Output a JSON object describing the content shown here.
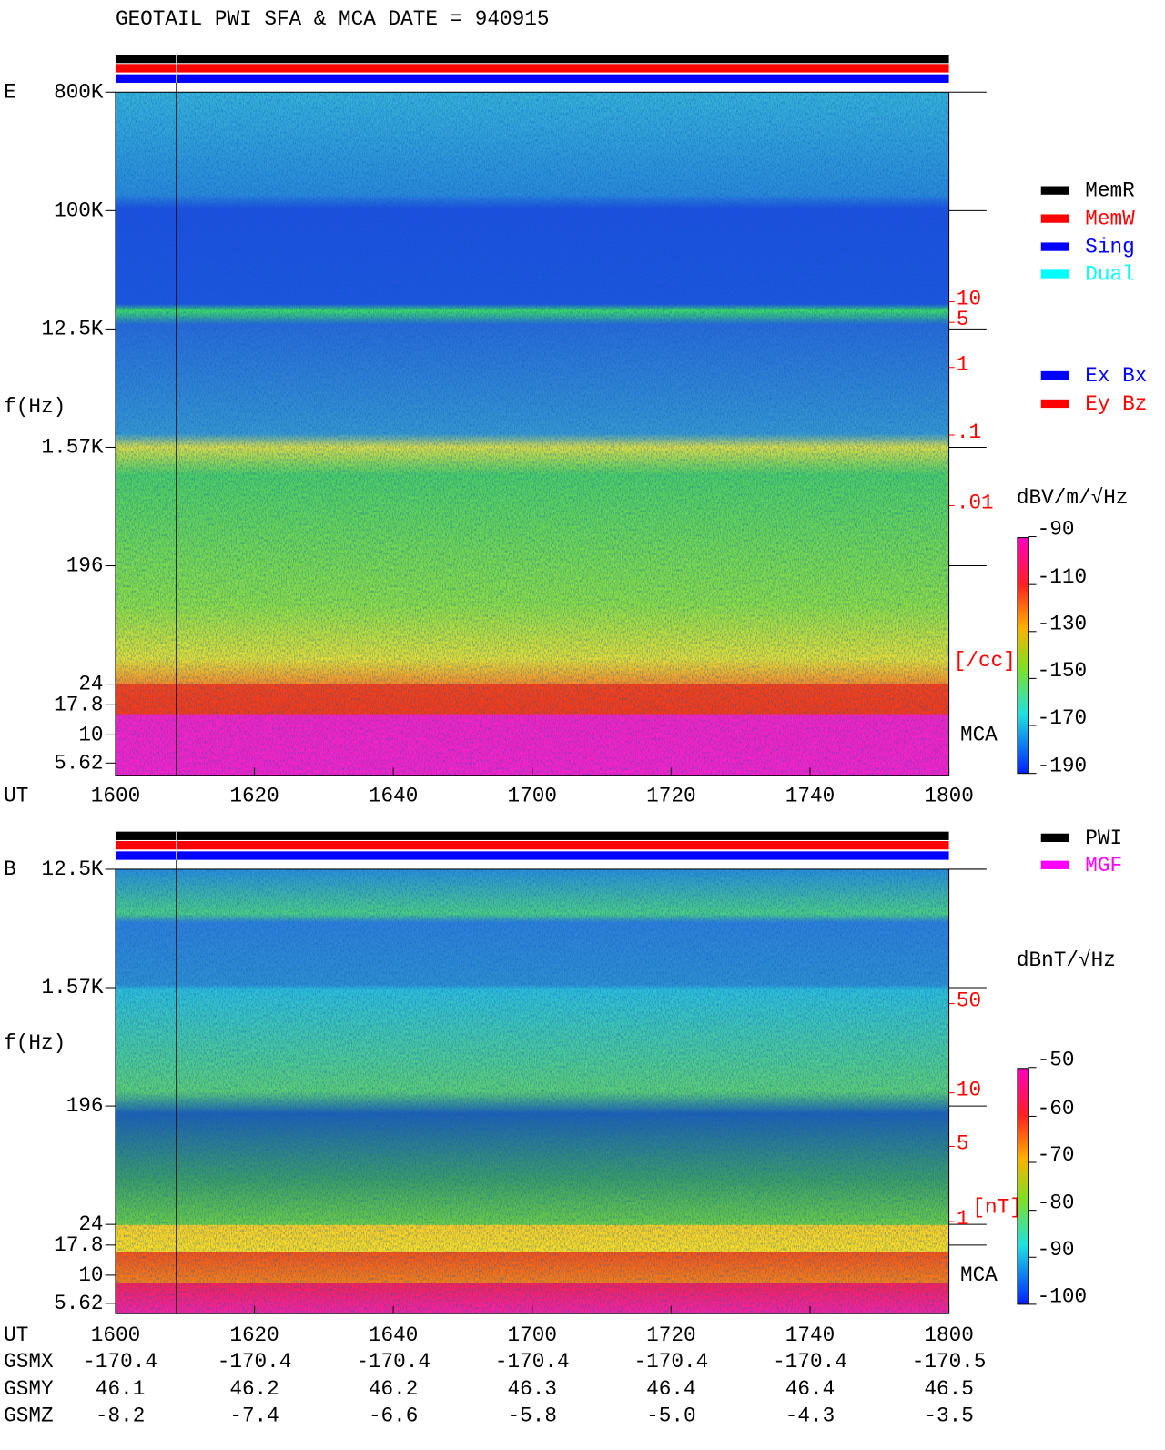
{
  "header": {
    "title": "GEOTAIL  PWI SFA & MCA   DATE = 940915"
  },
  "panels": [
    {
      "label": "E",
      "ylabel": "f(Hz)",
      "xlabel": "UT",
      "yticks": [
        "800K",
        "100K",
        "12.5K",
        "1.57K",
        "196",
        "24",
        "17.8",
        "10",
        "5.62"
      ],
      "xticks": [
        "1600",
        "1620",
        "1640",
        "1700",
        "1720",
        "1740",
        "1800"
      ],
      "density_ticks": [
        "10",
        "5",
        "1",
        ".1",
        ".01"
      ],
      "density_unit": "[/cc]",
      "mca": "MCA",
      "legend": [
        "MemR",
        "MemW",
        "Sing",
        "Dual"
      ],
      "legend2": [
        "Ex Bx",
        "Ey Bz"
      ],
      "colorbar_title": "dBV/m/√Hz",
      "colorbar_ticks": [
        "-90",
        "-110",
        "-130",
        "-150",
        "-170",
        "-190"
      ]
    },
    {
      "label": "B",
      "ylabel": "f(Hz)",
      "xlabel": "UT",
      "yticks": [
        "12.5K",
        "1.57K",
        "196",
        "24",
        "17.8",
        "10",
        "5.62"
      ],
      "xticks": [
        "1600",
        "1620",
        "1640",
        "1700",
        "1720",
        "1740",
        "1800"
      ],
      "density_ticks": [
        "50",
        "10",
        "5",
        "1"
      ],
      "density_unit": "[nT]",
      "mca": "MCA",
      "legend": [
        "PWI",
        "MGF"
      ],
      "colorbar_title": "dBnT/√Hz",
      "colorbar_ticks": [
        "-50",
        "-60",
        "-70",
        "-80",
        "-90",
        "-100"
      ]
    }
  ],
  "orbit": {
    "rows": [
      {
        "name": "GSMX",
        "values": [
          "-170.4",
          "-170.4",
          "-170.4",
          "-170.4",
          "-170.4",
          "-170.4",
          "-170.5"
        ]
      },
      {
        "name": "GSMY",
        "values": [
          "46.1",
          "46.2",
          "46.2",
          "46.3",
          "46.4",
          "46.4",
          "46.5"
        ]
      },
      {
        "name": "GSMZ",
        "values": [
          "-8.2",
          "-7.4",
          "-6.6",
          "-5.8",
          "-5.0",
          "-4.3",
          "-3.5"
        ]
      }
    ]
  }
}
